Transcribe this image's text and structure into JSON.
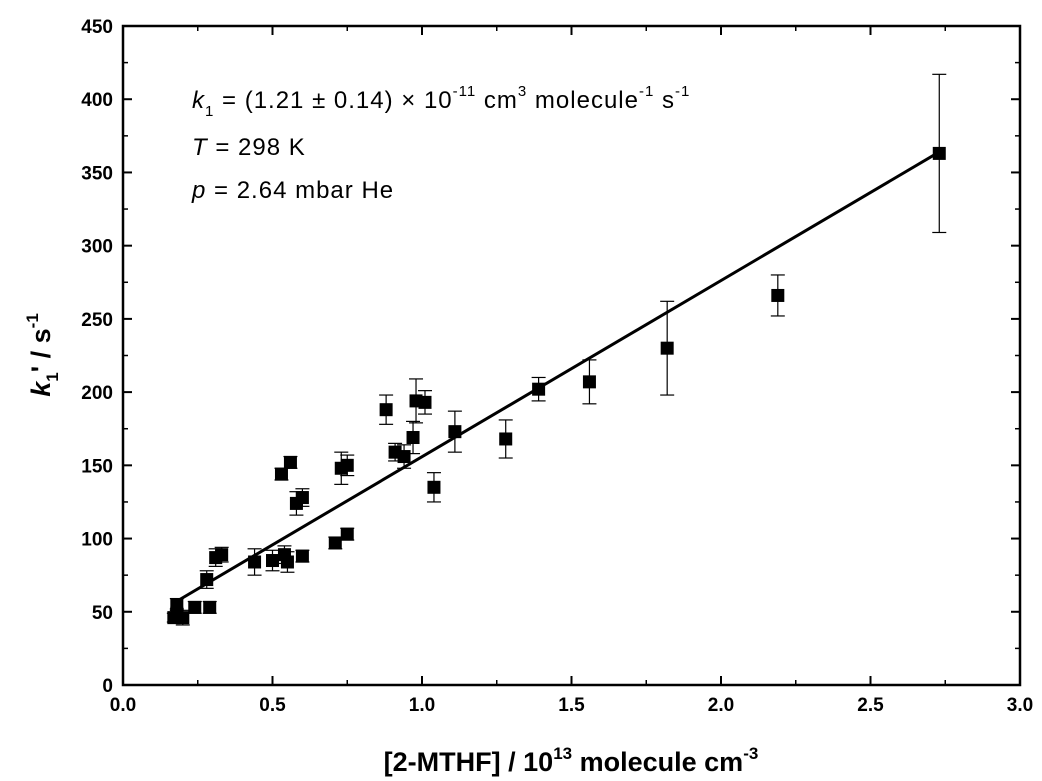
{
  "chart_data": {
    "type": "scatter",
    "xlabel_main": "[2-MTHF] / 10",
    "xlabel_exp": "13",
    "xlabel_unit": " molecule cm",
    "xlabel_unit_exp": "-3",
    "ylabel_var": "k",
    "ylabel_sub": "1",
    "ylabel_rest": "' / s",
    "ylabel_exp": "-1",
    "xlim": [
      0.0,
      3.0
    ],
    "ylim": [
      0,
      450
    ],
    "xticks": [
      "0.0",
      "0.5",
      "1.0",
      "1.5",
      "2.0",
      "2.5",
      "3.0"
    ],
    "yticks": [
      "0",
      "50",
      "100",
      "150",
      "200",
      "250",
      "300",
      "350",
      "400",
      "450"
    ],
    "annotations": {
      "k_var": "k",
      "k_sub": "1",
      "k_eq": " = (1.21 ± 0.14) × 10",
      "k_exp": "-11",
      "k_unit1": " cm",
      "k_unit1_exp": "3",
      "k_unit2": " molecule",
      "k_unit2_exp": "-1",
      "k_unit3": " s",
      "k_unit3_exp": "-1",
      "t_var": "T",
      "t_text": " = 298 K",
      "p_var": "p",
      "p_text": " = 2.64 mbar He"
    },
    "fit_line": {
      "x": [
        0.17,
        2.73
      ],
      "y": [
        56,
        364
      ]
    },
    "points": [
      {
        "x": 0.17,
        "y": 46,
        "err": 3
      },
      {
        "x": 0.18,
        "y": 49,
        "err": 3
      },
      {
        "x": 0.18,
        "y": 55,
        "err": 4
      },
      {
        "x": 0.2,
        "y": 46,
        "err": 5
      },
      {
        "x": 0.24,
        "y": 53,
        "err": 4
      },
      {
        "x": 0.28,
        "y": 72,
        "err": 6
      },
      {
        "x": 0.29,
        "y": 53,
        "err": 4
      },
      {
        "x": 0.31,
        "y": 87,
        "err": 6
      },
      {
        "x": 0.33,
        "y": 89,
        "err": 5
      },
      {
        "x": 0.44,
        "y": 84,
        "err": 9
      },
      {
        "x": 0.5,
        "y": 85,
        "err": 7
      },
      {
        "x": 0.53,
        "y": 144,
        "err": 4
      },
      {
        "x": 0.54,
        "y": 89,
        "err": 6
      },
      {
        "x": 0.55,
        "y": 84,
        "err": 7
      },
      {
        "x": 0.56,
        "y": 152,
        "err": 4
      },
      {
        "x": 0.58,
        "y": 124,
        "err": 8
      },
      {
        "x": 0.6,
        "y": 128,
        "err": 6
      },
      {
        "x": 0.6,
        "y": 88,
        "err": 4
      },
      {
        "x": 0.71,
        "y": 97,
        "err": 4
      },
      {
        "x": 0.73,
        "y": 148,
        "err": 11
      },
      {
        "x": 0.75,
        "y": 103,
        "err": 4
      },
      {
        "x": 0.75,
        "y": 150,
        "err": 7
      },
      {
        "x": 0.88,
        "y": 188,
        "err": 10
      },
      {
        "x": 0.91,
        "y": 159,
        "err": 6
      },
      {
        "x": 0.94,
        "y": 156,
        "err": 8
      },
      {
        "x": 0.97,
        "y": 169,
        "err": 11
      },
      {
        "x": 0.98,
        "y": 194,
        "err": 15
      },
      {
        "x": 1.01,
        "y": 193,
        "err": 8
      },
      {
        "x": 1.04,
        "y": 135,
        "err": 10
      },
      {
        "x": 1.11,
        "y": 173,
        "err": 14
      },
      {
        "x": 1.28,
        "y": 168,
        "err": 13
      },
      {
        "x": 1.39,
        "y": 202,
        "err": 8
      },
      {
        "x": 1.56,
        "y": 207,
        "err": 15
      },
      {
        "x": 1.82,
        "y": 230,
        "err": 32
      },
      {
        "x": 2.19,
        "y": 266,
        "err": 14
      },
      {
        "x": 2.73,
        "y": 363,
        "err": 54
      }
    ]
  }
}
